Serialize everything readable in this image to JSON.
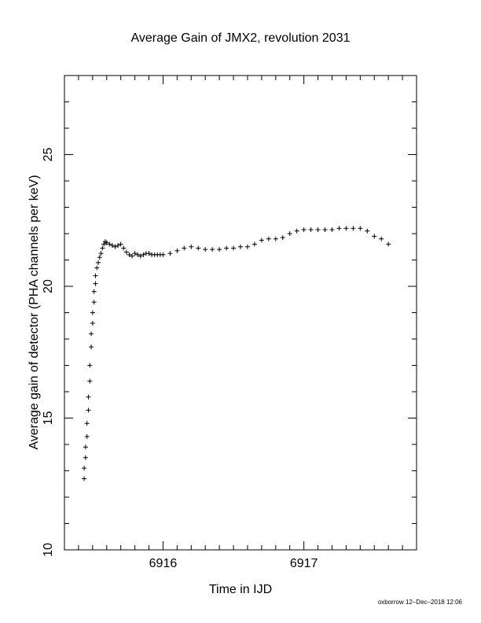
{
  "chart_data": {
    "type": "scatter",
    "title": "Average Gain of JMX2, revolution 2031",
    "xlabel": "Time in IJD",
    "ylabel": "Average gain of detector (PHA channels per keV)",
    "xlim": [
      6915.3,
      6917.8
    ],
    "ylim": [
      10,
      28
    ],
    "x_ticks": [
      6916,
      6917
    ],
    "x_tick_labels": [
      "6916",
      "6917"
    ],
    "y_ticks": [
      10,
      15,
      20,
      25
    ],
    "y_tick_labels": [
      "10",
      "15",
      "20",
      "25"
    ],
    "grid": false,
    "marker": "plus",
    "footer": "oxborrow 12–Dec–2018 12:06",
    "series": [
      {
        "x": [
          6915.44,
          6915.44,
          6915.45,
          6915.45,
          6915.46,
          6915.46,
          6915.47,
          6915.47,
          6915.48,
          6915.48,
          6915.49,
          6915.49,
          6915.5,
          6915.5,
          6915.51,
          6915.51,
          6915.52,
          6915.52,
          6915.53,
          6915.54,
          6915.55,
          6915.56,
          6915.57,
          6915.58,
          6915.59,
          6915.6,
          6915.62,
          6915.64,
          6915.66,
          6915.68,
          6915.7,
          6915.72,
          6915.74,
          6915.76,
          6915.78,
          6915.8,
          6915.82,
          6915.84,
          6915.86,
          6915.88,
          6915.9,
          6915.92,
          6915.94,
          6915.96,
          6915.98,
          6916.0,
          6916.05,
          6916.1,
          6916.15,
          6916.2,
          6916.25,
          6916.3,
          6916.35,
          6916.4,
          6916.45,
          6916.5,
          6916.55,
          6916.6,
          6916.65,
          6916.7,
          6916.75,
          6916.8,
          6916.85,
          6916.9,
          6916.95,
          6917.0,
          6917.05,
          6917.1,
          6917.15,
          6917.2,
          6917.25,
          6917.3,
          6917.35,
          6917.4,
          6917.45,
          6917.5,
          6917.55,
          6917.6
        ],
        "y": [
          12.7,
          13.1,
          13.5,
          13.9,
          14.3,
          14.8,
          15.3,
          15.8,
          16.4,
          17.0,
          17.7,
          18.2,
          18.6,
          19.0,
          19.4,
          19.8,
          20.1,
          20.4,
          20.7,
          20.9,
          21.1,
          21.25,
          21.45,
          21.6,
          21.7,
          21.65,
          21.6,
          21.55,
          21.5,
          21.55,
          21.6,
          21.45,
          21.3,
          21.2,
          21.15,
          21.25,
          21.2,
          21.15,
          21.2,
          21.25,
          21.25,
          21.2,
          21.2,
          21.2,
          21.2,
          21.2,
          21.25,
          21.35,
          21.45,
          21.5,
          21.45,
          21.4,
          21.4,
          21.4,
          21.45,
          21.45,
          21.5,
          21.5,
          21.6,
          21.75,
          21.8,
          21.8,
          21.85,
          22.0,
          22.1,
          22.15,
          22.15,
          22.15,
          22.15,
          22.15,
          22.2,
          22.2,
          22.2,
          22.2,
          22.1,
          21.9,
          21.8,
          21.6
        ]
      }
    ]
  }
}
